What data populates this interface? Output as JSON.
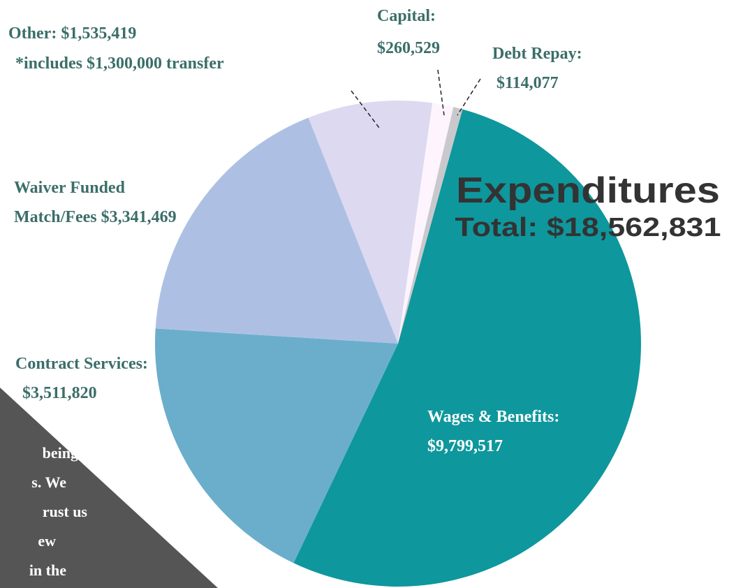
{
  "chart_data": {
    "type": "pie",
    "title": "Expenditures",
    "subtitle": "Total: $18,562,831",
    "categories": [
      "Wages & Benefits:",
      "Contract Services:",
      "Waiver Funded Match/Fees",
      "Other:",
      "Capital:",
      "Debt Repay:"
    ],
    "values": [
      9799517,
      3511820,
      3341469,
      1535419,
      260529,
      114077
    ],
    "value_labels": [
      "$9,799,517",
      "$3,511,820",
      "$3,341,469",
      "$1,535,419",
      "$260,529",
      "$114,077"
    ],
    "colors": [
      "#0e979d",
      "#6aaecb",
      "#adc0e4",
      "#dcd9f1",
      "#fdf4fd",
      "#c9c9cd"
    ],
    "annotation": "*includes $1,300,000 transfer",
    "side_note": [
      "being",
      "s. We",
      "rust us",
      "ew",
      "in the"
    ]
  }
}
